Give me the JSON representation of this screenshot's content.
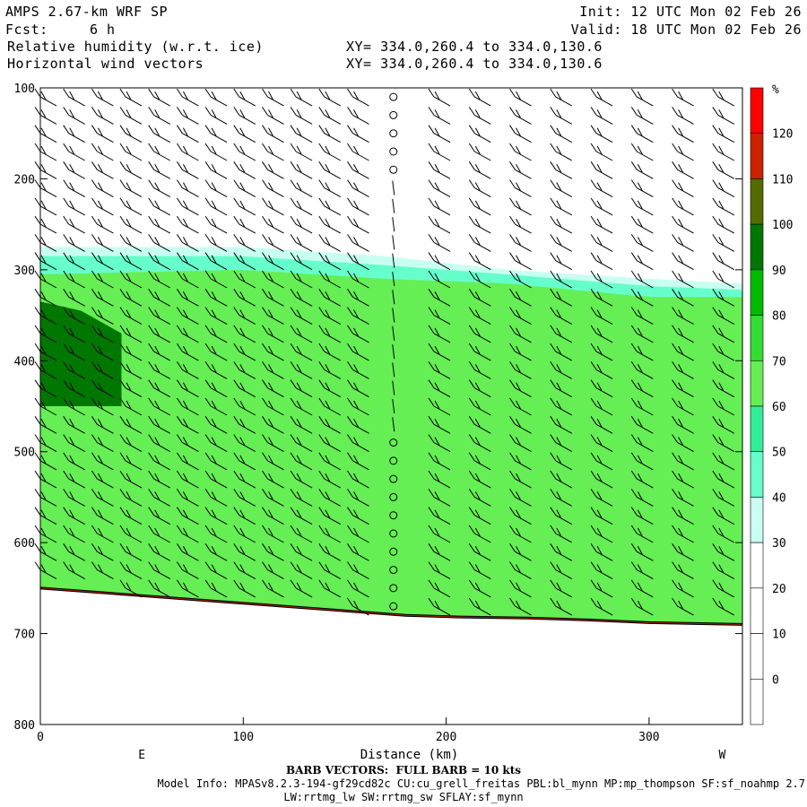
{
  "header": {
    "model": "AMPS 2.67-km WRF SP",
    "fcst_label": "Fcst:",
    "fcst_value": "6 h",
    "init": "Init: 12 UTC Mon 02 Feb 26",
    "valid": "Valid: 18 UTC Mon 02 Feb 26",
    "field1": "Relative humidity (w.r.t. ice)",
    "field2": "Horizontal wind vectors",
    "xy1": "XY= 334.0,260.4 to 334.0,130.6",
    "xy2": "XY= 334.0,260.4 to 334.0,130.6"
  },
  "footer": {
    "barb_note": "BARB VECTORS:  FULL BARB = 10 kts",
    "model_info": "Model Info: MPASv8.2.3-194-gf29cd82c CU:cu_grell_freitas PBL:bl_mynn MP:mp_thompson SF:sf_noahmp 2.7",
    "model_info2": "LW:rrtmg_lw SW:rrtmg_sw SFLAY:sf_mynn"
  },
  "chart_data": {
    "type": "heatmap",
    "title": "Relative humidity (w.r.t. ice)",
    "xlabel": "Distance (km)",
    "ylabel": "",
    "x_range": [
      0,
      346
    ],
    "y_range": [
      100,
      800
    ],
    "y_inverted": true,
    "x_ticks": [
      "0",
      "100",
      "200",
      "300"
    ],
    "y_ticks": [
      "100",
      "200",
      "300",
      "400",
      "500",
      "600",
      "700",
      "800"
    ],
    "x_end_labels": {
      "left": "E",
      "right": "W"
    },
    "colorbar": {
      "unit": "%",
      "levels": [
        0,
        10,
        20,
        30,
        40,
        50,
        60,
        70,
        80,
        90,
        100,
        110,
        120
      ],
      "colors": [
        "#ffffff",
        "#ffffff",
        "#ffffff",
        "#ffffff",
        "#c8fff0",
        "#66ffcc",
        "#33ee99",
        "#66ee55",
        "#33dd33",
        "#00bb00",
        "#007700",
        "#556b00",
        "#cc2200",
        "#ff0000"
      ]
    },
    "rh_regions": [
      {
        "level": 30,
        "x_start": 0,
        "x_end": 346,
        "top": [
          275,
          275,
          285,
          300,
          310,
          315
        ],
        "top_x": [
          0,
          100,
          170,
          230,
          300,
          346
        ]
      },
      {
        "level": 40,
        "x_start": 0,
        "x_end": 346,
        "top": [
          285,
          285,
          295,
          305,
          318,
          322
        ],
        "top_x": [
          0,
          100,
          170,
          230,
          300,
          346
        ]
      },
      {
        "level": 60,
        "x_start": 0,
        "x_end": 346,
        "top": [
          305,
          300,
          310,
          315,
          330,
          330
        ],
        "top_x": [
          0,
          100,
          170,
          230,
          300,
          346
        ]
      },
      {
        "level": 90,
        "x_start": 0,
        "x_end": 40,
        "top": [
          335,
          345,
          370
        ],
        "top_x": [
          0,
          20,
          40
        ]
      }
    ],
    "terrain_hpa": [
      650,
      655,
      660,
      665,
      670,
      675,
      680,
      682,
      683,
      685,
      688,
      690
    ],
    "terrain_x": [
      0,
      30,
      60,
      90,
      120,
      150,
      180,
      210,
      240,
      270,
      300,
      346
    ],
    "barb_columns_km": [
      0,
      14,
      28,
      42,
      56,
      70,
      84,
      98,
      112,
      126,
      140,
      154,
      174,
      194,
      214,
      234,
      254,
      274,
      294,
      314,
      334
    ],
    "barb_levels_hpa": [
      110,
      130,
      150,
      170,
      190,
      210,
      230,
      250,
      270,
      290,
      310,
      330,
      350,
      370,
      390,
      410,
      430,
      450,
      470,
      490,
      510,
      530,
      550,
      570,
      590,
      610,
      630,
      650,
      670
    ],
    "calm_column_km": 174,
    "barb_note": "FULL BARB = 10 kts"
  }
}
